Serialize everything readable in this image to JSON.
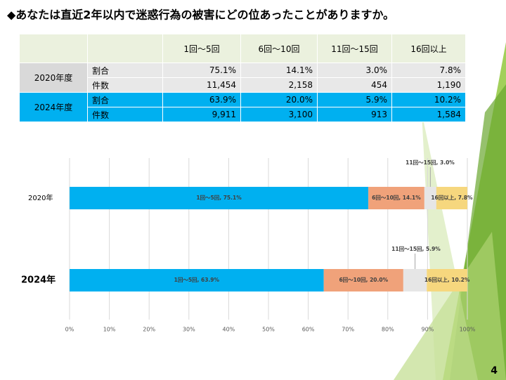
{
  "title": "◆あなたは直近2年以内で迷惑行為の被害にどの位あったことがありますか。",
  "page_number": "4",
  "table": {
    "header": [
      "1回～5回",
      "6回～10回",
      "11回～15回",
      "16回以上"
    ],
    "groups": [
      {
        "label": "2020年度",
        "rows": [
          {
            "label": "割合",
            "cells": [
              "75.1%",
              "14.1%",
              "3.0%",
              "7.8%"
            ]
          },
          {
            "label": "件数",
            "cells": [
              "11,454",
              "2,158",
              "454",
              "1,190"
            ]
          }
        ]
      },
      {
        "label": "2024年度",
        "rows": [
          {
            "label": "割合",
            "cells": [
              "63.9%",
              "20.0%",
              "5.9%",
              "10.2%"
            ]
          },
          {
            "label": "件数",
            "cells": [
              "9,911",
              "3,100",
              "913",
              "1,584"
            ]
          }
        ]
      }
    ]
  },
  "chart_data": {
    "type": "stacked_bar_horizontal",
    "categories": [
      "2020年",
      "2024年"
    ],
    "series": [
      {
        "name": "1回～5回",
        "color": "#00b0f0",
        "values": [
          75.1,
          63.9
        ],
        "value_labels": [
          "1回～5回, 75.1%",
          "1回～5回, 63.9%"
        ]
      },
      {
        "name": "6回～10回",
        "color": "#f0a27a",
        "values": [
          14.1,
          20.0
        ],
        "value_labels": [
          "6回～10回, 14.1%",
          "6回～10回, 20.0%"
        ]
      },
      {
        "name": "11回～15回",
        "color": "#e6e6e6",
        "values": [
          3.0,
          5.9
        ],
        "value_labels": [
          "11回～15回, 3.0%",
          "11回～15回, 5.9%"
        ]
      },
      {
        "name": "16回以上",
        "color": "#f6d77e",
        "values": [
          7.8,
          10.2
        ],
        "value_labels": [
          "16回以上, 7.8%",
          "16回以上, 10.2%"
        ]
      }
    ],
    "xlim": [
      0,
      100
    ],
    "xticks": [
      {
        "value": 0,
        "label": "0%"
      },
      {
        "value": 10,
        "label": "10%"
      },
      {
        "value": 20,
        "label": "20%"
      },
      {
        "value": 30,
        "label": "30%"
      },
      {
        "value": 40,
        "label": "40%"
      },
      {
        "value": 50,
        "label": "50%"
      },
      {
        "value": 60,
        "label": "60%"
      },
      {
        "value": 70,
        "label": "70%"
      },
      {
        "value": 80,
        "label": "80%"
      },
      {
        "value": 90,
        "label": "90%"
      },
      {
        "value": 100,
        "label": "100%"
      }
    ],
    "grid": true
  }
}
